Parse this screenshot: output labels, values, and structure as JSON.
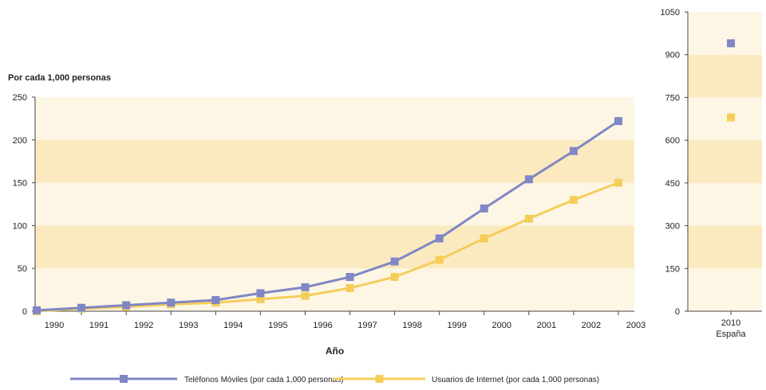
{
  "colors": {
    "band_dark": "#fbe9bf",
    "band_light": "#fdf6e4",
    "axis": "#444444",
    "series_blue": "#8087c4",
    "series_yellow": "#f5cd5a"
  },
  "chart_data": [
    {
      "type": "line",
      "title": "",
      "ylabel": "Por cada 1,000 personas",
      "xlabel": "Año",
      "ylim": [
        0,
        250
      ],
      "yticks": [
        "0",
        "50",
        "100",
        "150",
        "200",
        "250"
      ],
      "grid": "alternating horizontal bands",
      "legend": "bottom",
      "categories": [
        "1990",
        "1991",
        "1992",
        "1993",
        "1994",
        "1995",
        "1996",
        "1997",
        "1998",
        "1999",
        "2000",
        "2001",
        "2002",
        "2003"
      ],
      "series": [
        {
          "name": "Teléfonos Móviles (por cada 1,000 personas)",
          "color": "#8087c4",
          "values": [
            1,
            4,
            7,
            10,
            13,
            21,
            28,
            40,
            58,
            85,
            120,
            154,
            187,
            222
          ]
        },
        {
          "name": "Usuarios de Internet (por cada 1,000 personas)",
          "color": "#f5cd5a",
          "values": [
            0,
            3,
            5,
            8,
            10,
            14,
            18,
            27,
            40,
            60,
            85,
            108,
            130,
            150
          ]
        }
      ]
    },
    {
      "type": "scatter",
      "title": "",
      "ylim": [
        0,
        1050
      ],
      "yticks": [
        "0",
        "150",
        "300",
        "450",
        "600",
        "750",
        "900",
        "1050"
      ],
      "categories": [
        "2010"
      ],
      "category_sublabel": "España",
      "series": [
        {
          "name": "Teléfonos Móviles (por cada 1,000 personas)",
          "color": "#8087c4",
          "values": [
            940
          ]
        },
        {
          "name": "Usuarios de Internet (por cada 1,000 personas)",
          "color": "#f5cd5a",
          "values": [
            680
          ]
        }
      ]
    }
  ]
}
